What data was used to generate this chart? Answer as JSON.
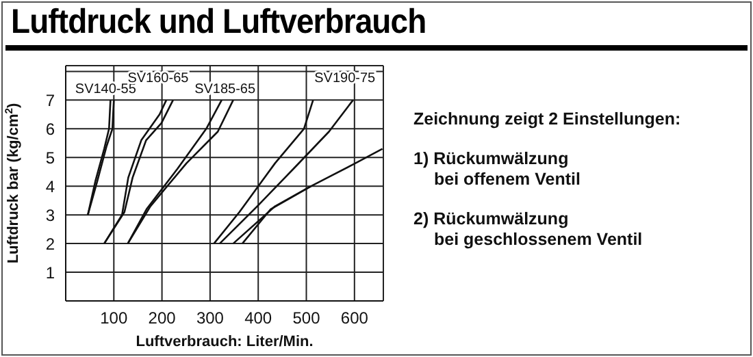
{
  "chart_data": {
    "type": "line",
    "title": "Luftdruck und Luftverbrauch",
    "xlabel": "Luftverbrauch: Liter/Min.",
    "ylabel": "Luftdruck bar (kg/cm$^{2}$)",
    "xlim": [
      0,
      660
    ],
    "xticks": [
      100,
      200,
      300,
      400,
      500,
      600
    ],
    "ylim": [
      0,
      8.2
    ],
    "yticks": [
      1,
      2,
      3,
      4,
      5,
      6,
      7,
      {
        "value": 8,
        "label": null
      }
    ],
    "grid": true,
    "series": [
      {
        "color": "#111111",
        "x": [
          46,
          62,
          80,
          90,
          93
        ],
        "values": [
          3,
          4.2,
          5.3,
          6,
          7
        ]
      },
      {
        "name": "SV140-55",
        "color": "#111111",
        "x": [
          46,
          66,
          85,
          97,
          100
        ],
        "values": [
          3,
          4.2,
          5.4,
          6,
          7
        ]
      },
      {
        "name": "SV160-65",
        "color": "#111111",
        "x": [
          80,
          117,
          130,
          157,
          195,
          209
        ],
        "values": [
          2,
          3,
          4.3,
          5.6,
          6.5,
          7
        ]
      },
      {
        "color": "#111111",
        "x": [
          80,
          122,
          139,
          167,
          199,
          223
        ],
        "values": [
          2,
          3.1,
          4.3,
          5.6,
          6.2,
          7
        ]
      },
      {
        "color": "#111111",
        "x": [
          129,
          168,
          232,
          292,
          324
        ],
        "values": [
          2,
          3.2,
          4.6,
          6,
          7
        ]
      },
      {
        "name": "SV185-65",
        "color": "#111111",
        "x": [
          129,
          176,
          251,
          316,
          348
        ],
        "values": [
          2,
          3.3,
          4.8,
          5.9,
          7
        ]
      },
      {
        "color": "#111111",
        "x": [
          308,
          361,
          435,
          495,
          514
        ],
        "values": [
          2,
          3.1,
          4.8,
          6,
          7
        ]
      },
      {
        "name": "SV190-75",
        "color": "#111111",
        "x": [
          320,
          398,
          473,
          547,
          597
        ],
        "values": [
          2,
          3.3,
          4.6,
          5.9,
          7
        ]
      },
      {
        "color": "#111111",
        "x": [
          348,
          435,
          510,
          602,
          658
        ],
        "values": [
          2,
          3.3,
          4,
          4.8,
          5.3
        ]
      },
      {
        "color": "#111111",
        "x": [
          367,
          426,
          510
        ],
        "values": [
          2,
          3.2,
          4
        ]
      }
    ],
    "annotations": [
      "Zeichnung zeigt 2 Einstellungen:",
      "1) Rückumwälzung\nbei offenem Ventil",
      "2) Rückumwälzung\nbei geschlossenem Ventil"
    ]
  }
}
